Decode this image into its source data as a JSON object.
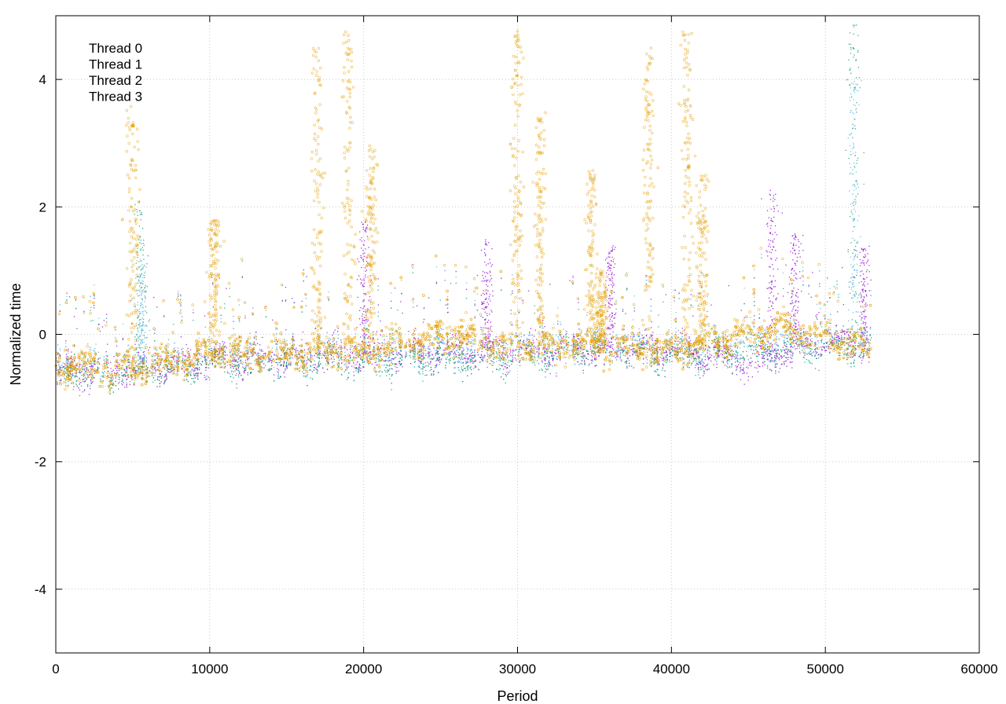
{
  "chart_data": {
    "type": "scatter",
    "title": "",
    "xlabel": "Period",
    "ylabel": "Normalized time",
    "xlim": [
      0,
      60000
    ],
    "ylim": [
      -5,
      5
    ],
    "xticks": [
      "0",
      "10000",
      "20000",
      "30000",
      "40000",
      "50000",
      "60000"
    ],
    "yticks": [
      "-4",
      "-2",
      "0",
      "2",
      "4"
    ],
    "grid": true,
    "legend_position": "top-left",
    "x_range_of_points": [
      0,
      53000
    ],
    "series": [
      {
        "name": "Thread 0",
        "color": "#9400d3",
        "marker": "dot",
        "baseline": [
          [
            0,
            -0.55
          ],
          [
            5000,
            -0.55
          ],
          [
            10000,
            -0.4
          ],
          [
            20000,
            -0.3
          ],
          [
            30000,
            -0.25
          ],
          [
            40000,
            -0.2
          ],
          [
            45000,
            -0.45
          ],
          [
            50000,
            -0.1
          ],
          [
            53000,
            -0.15
          ]
        ],
        "spikes": [
          [
            46500,
            2.3
          ],
          [
            48000,
            1.6
          ],
          [
            52500,
            1.4
          ],
          [
            20000,
            1.8
          ],
          [
            28000,
            1.5
          ],
          [
            36000,
            1.4
          ]
        ]
      },
      {
        "name": "Thread 1",
        "color": "#009e73",
        "marker": "dot",
        "baseline": [
          [
            0,
            -0.6
          ],
          [
            5000,
            -0.6
          ],
          [
            10000,
            -0.45
          ],
          [
            20000,
            -0.4
          ],
          [
            30000,
            -0.35
          ],
          [
            36000,
            -0.2
          ],
          [
            40000,
            -0.35
          ],
          [
            50000,
            -0.2
          ],
          [
            53000,
            -0.2
          ]
        ],
        "spikes": [
          [
            5500,
            2.1
          ],
          [
            51800,
            4.9
          ]
        ]
      },
      {
        "name": "Thread 2",
        "color": "#56b4e9",
        "marker": "dot",
        "baseline": [
          [
            0,
            -0.45
          ],
          [
            5000,
            -0.45
          ],
          [
            10000,
            -0.3
          ],
          [
            20000,
            -0.25
          ],
          [
            30000,
            -0.15
          ],
          [
            36000,
            -0.05
          ],
          [
            40000,
            -0.2
          ],
          [
            50000,
            -0.05
          ],
          [
            53000,
            -0.1
          ]
        ],
        "spikes": [
          [
            5500,
            1.2
          ],
          [
            51800,
            4.0
          ]
        ]
      },
      {
        "name": "Thread 3",
        "color": "#e69f00",
        "marker": "circle",
        "baseline": [
          [
            0,
            -0.5
          ],
          [
            5000,
            -0.55
          ],
          [
            10000,
            -0.3
          ],
          [
            20000,
            -0.25
          ],
          [
            26000,
            0.0
          ],
          [
            30000,
            -0.2
          ],
          [
            35000,
            -0.15
          ],
          [
            40000,
            -0.25
          ],
          [
            47000,
            0.1
          ],
          [
            50000,
            -0.05
          ],
          [
            53000,
            -0.25
          ]
        ],
        "spikes": [
          [
            5000,
            3.6
          ],
          [
            10300,
            1.8
          ],
          [
            17000,
            4.5
          ],
          [
            19000,
            4.8
          ],
          [
            20500,
            3.0
          ],
          [
            30000,
            4.8
          ],
          [
            31500,
            3.5
          ],
          [
            34800,
            2.6
          ],
          [
            35500,
            1.0
          ],
          [
            38500,
            4.5
          ],
          [
            41000,
            4.8
          ],
          [
            42000,
            2.5
          ]
        ]
      }
    ]
  }
}
